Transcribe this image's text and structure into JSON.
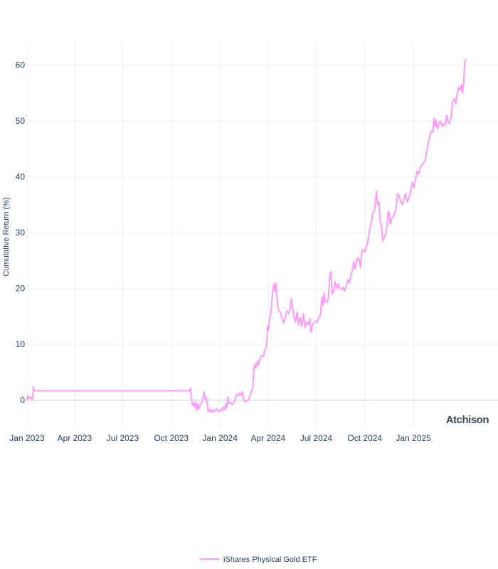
{
  "chart_data": {
    "type": "line",
    "title": "",
    "xlabel": "",
    "ylabel": "Cumulative Return (%)",
    "x_range": [
      "2023-01-01",
      "2025-06-10"
    ],
    "ylim": [
      -5,
      64
    ],
    "y_ticks": [
      0,
      10,
      20,
      30,
      40,
      50,
      60
    ],
    "x_ticks": [
      {
        "date": "2023-01-01",
        "label": "Jan 2023"
      },
      {
        "date": "2023-04-01",
        "label": "Apr 2023"
      },
      {
        "date": "2023-07-01",
        "label": "Jul 2023"
      },
      {
        "date": "2023-10-01",
        "label": "Oct 2023"
      },
      {
        "date": "2024-01-01",
        "label": "Jan 2024"
      },
      {
        "date": "2024-04-01",
        "label": "Apr 2024"
      },
      {
        "date": "2024-07-01",
        "label": "Jul 2024"
      },
      {
        "date": "2024-10-01",
        "label": "Oct 2024"
      },
      {
        "date": "2025-01-01",
        "label": "Jan 2025"
      }
    ],
    "grid": true,
    "legend_position": "bottom-center",
    "watermark": "Atchison",
    "series": [
      {
        "name": "iShares Physical Gold ETF",
        "color": "#ff9cf9",
        "points": [
          [
            "2023-01-01",
            0.0
          ],
          [
            "2023-01-03",
            0.8
          ],
          [
            "2023-01-05",
            0.3
          ],
          [
            "2023-01-08",
            0.6
          ],
          [
            "2023-01-10",
            0.1
          ],
          [
            "2023-01-12",
            0.5
          ],
          [
            "2023-01-13",
            2.4
          ],
          [
            "2023-01-15",
            1.7
          ],
          [
            "2023-02-01",
            1.7
          ],
          [
            "2023-06-01",
            1.7
          ],
          [
            "2023-10-01",
            1.7
          ],
          [
            "2023-11-01",
            1.7
          ],
          [
            "2023-11-05",
            1.7
          ],
          [
            "2023-11-06",
            2.2
          ],
          [
            "2023-11-08",
            0.3
          ],
          [
            "2023-11-10",
            -0.9
          ],
          [
            "2023-11-12",
            -0.4
          ],
          [
            "2023-11-14",
            -1.2
          ],
          [
            "2023-11-16",
            -0.3
          ],
          [
            "2023-11-18",
            -1.8
          ],
          [
            "2023-11-20",
            -0.6
          ],
          [
            "2023-11-22",
            -1.6
          ],
          [
            "2023-11-24",
            -1.0
          ],
          [
            "2023-11-27",
            -0.5
          ],
          [
            "2023-11-30",
            0.3
          ],
          [
            "2023-12-02",
            1.5
          ],
          [
            "2023-12-04",
            0.2
          ],
          [
            "2023-12-06",
            0.5
          ],
          [
            "2023-12-08",
            -0.8
          ],
          [
            "2023-12-10",
            -2.1
          ],
          [
            "2023-12-13",
            -1.6
          ],
          [
            "2023-12-16",
            -2.2
          ],
          [
            "2023-12-19",
            -1.7
          ],
          [
            "2023-12-22",
            -2.0
          ],
          [
            "2023-12-26",
            -1.5
          ],
          [
            "2023-12-29",
            -2.1
          ],
          [
            "2024-01-02",
            -1.6
          ],
          [
            "2024-01-05",
            -1.9
          ],
          [
            "2024-01-08",
            -1.2
          ],
          [
            "2024-01-10",
            -1.7
          ],
          [
            "2024-01-12",
            -0.6
          ],
          [
            "2024-01-14",
            -1.3
          ],
          [
            "2024-01-16",
            0.6
          ],
          [
            "2024-01-18",
            -0.6
          ],
          [
            "2024-01-21",
            -0.4
          ],
          [
            "2024-01-24",
            -0.8
          ],
          [
            "2024-01-27",
            -0.5
          ],
          [
            "2024-01-30",
            0.3
          ],
          [
            "2024-02-02",
            1.1
          ],
          [
            "2024-02-05",
            0.8
          ],
          [
            "2024-02-08",
            1.3
          ],
          [
            "2024-02-10",
            0.9
          ],
          [
            "2024-02-13",
            1.5
          ],
          [
            "2024-02-15",
            0.0
          ],
          [
            "2024-02-18",
            -0.3
          ],
          [
            "2024-02-21",
            -0.1
          ],
          [
            "2024-02-24",
            0.0
          ],
          [
            "2024-02-27",
            0.8
          ],
          [
            "2024-03-01",
            1.8
          ],
          [
            "2024-03-03",
            2.2
          ],
          [
            "2024-03-05",
            5.5
          ],
          [
            "2024-03-07",
            6.5
          ],
          [
            "2024-03-09",
            5.8
          ],
          [
            "2024-03-12",
            7.0
          ],
          [
            "2024-03-14",
            6.3
          ],
          [
            "2024-03-17",
            7.5
          ],
          [
            "2024-03-20",
            8.0
          ],
          [
            "2024-03-23",
            7.8
          ],
          [
            "2024-03-26",
            9.0
          ],
          [
            "2024-03-29",
            9.5
          ],
          [
            "2024-03-31",
            13.2
          ],
          [
            "2024-04-02",
            12.5
          ],
          [
            "2024-04-04",
            14.8
          ],
          [
            "2024-04-06",
            15.5
          ],
          [
            "2024-04-08",
            17.5
          ],
          [
            "2024-04-10",
            19.5
          ],
          [
            "2024-04-12",
            20.8
          ],
          [
            "2024-04-14",
            19.5
          ],
          [
            "2024-04-16",
            21.0
          ],
          [
            "2024-04-18",
            18.5
          ],
          [
            "2024-04-20",
            16.2
          ],
          [
            "2024-04-24",
            15.8
          ],
          [
            "2024-04-28",
            14.5
          ],
          [
            "2024-05-01",
            13.8
          ],
          [
            "2024-05-04",
            15.2
          ],
          [
            "2024-05-07",
            16.0
          ],
          [
            "2024-05-10",
            15.5
          ],
          [
            "2024-05-13",
            16.3
          ],
          [
            "2024-05-15",
            18.2
          ],
          [
            "2024-05-17",
            17.0
          ],
          [
            "2024-05-20",
            15.0
          ],
          [
            "2024-05-23",
            14.0
          ],
          [
            "2024-05-26",
            15.8
          ],
          [
            "2024-05-29",
            13.5
          ],
          [
            "2024-06-01",
            14.8
          ],
          [
            "2024-06-04",
            13.2
          ],
          [
            "2024-06-07",
            15.5
          ],
          [
            "2024-06-10",
            13.0
          ],
          [
            "2024-06-13",
            14.0
          ],
          [
            "2024-06-16",
            13.5
          ],
          [
            "2024-06-19",
            14.6
          ],
          [
            "2024-06-21",
            12.2
          ],
          [
            "2024-06-24",
            13.5
          ],
          [
            "2024-06-27",
            13.8
          ],
          [
            "2024-06-30",
            14.2
          ],
          [
            "2024-07-03",
            14.0
          ],
          [
            "2024-07-06",
            14.8
          ],
          [
            "2024-07-09",
            15.2
          ],
          [
            "2024-07-12",
            18.5
          ],
          [
            "2024-07-14",
            17.0
          ],
          [
            "2024-07-16",
            19.2
          ],
          [
            "2024-07-18",
            17.8
          ],
          [
            "2024-07-21",
            17.5
          ],
          [
            "2024-07-24",
            18.2
          ],
          [
            "2024-07-27",
            22.5
          ],
          [
            "2024-07-29",
            23.0
          ],
          [
            "2024-07-31",
            19.0
          ],
          [
            "2024-08-03",
            19.5
          ],
          [
            "2024-08-06",
            21.2
          ],
          [
            "2024-08-09",
            20.0
          ],
          [
            "2024-08-12",
            20.8
          ],
          [
            "2024-08-15",
            20.0
          ],
          [
            "2024-08-18",
            19.8
          ],
          [
            "2024-08-21",
            20.2
          ],
          [
            "2024-08-24",
            19.6
          ],
          [
            "2024-08-27",
            20.5
          ],
          [
            "2024-08-30",
            21.5
          ],
          [
            "2024-09-02",
            21.0
          ],
          [
            "2024-09-05",
            22.5
          ],
          [
            "2024-09-08",
            23.5
          ],
          [
            "2024-09-10",
            24.8
          ],
          [
            "2024-09-12",
            23.5
          ],
          [
            "2024-09-14",
            24.0
          ],
          [
            "2024-09-17",
            25.5
          ],
          [
            "2024-09-20",
            25.2
          ],
          [
            "2024-09-23",
            23.8
          ],
          [
            "2024-09-25",
            26.5
          ],
          [
            "2024-09-28",
            27.0
          ],
          [
            "2024-10-01",
            26.5
          ],
          [
            "2024-10-04",
            27.5
          ],
          [
            "2024-10-07",
            28.5
          ],
          [
            "2024-10-10",
            30.5
          ],
          [
            "2024-10-13",
            31.5
          ],
          [
            "2024-10-16",
            33.5
          ],
          [
            "2024-10-19",
            33.8
          ],
          [
            "2024-10-21",
            35.5
          ],
          [
            "2024-10-23",
            37.5
          ],
          [
            "2024-10-25",
            35.0
          ],
          [
            "2024-10-28",
            35.5
          ],
          [
            "2024-10-30",
            32.0
          ],
          [
            "2024-11-02",
            31.0
          ],
          [
            "2024-11-04",
            28.5
          ],
          [
            "2024-11-06",
            29.0
          ],
          [
            "2024-11-09",
            29.5
          ],
          [
            "2024-11-12",
            31.0
          ],
          [
            "2024-11-14",
            33.5
          ],
          [
            "2024-11-16",
            33.8
          ],
          [
            "2024-11-18",
            31.5
          ],
          [
            "2024-11-21",
            32.5
          ],
          [
            "2024-11-24",
            33.0
          ],
          [
            "2024-11-27",
            33.5
          ],
          [
            "2024-11-30",
            35.0
          ],
          [
            "2024-12-02",
            37.0
          ],
          [
            "2024-12-05",
            36.5
          ],
          [
            "2024-12-08",
            35.5
          ],
          [
            "2024-12-11",
            35.0
          ],
          [
            "2024-12-14",
            36.0
          ],
          [
            "2024-12-17",
            37.0
          ],
          [
            "2024-12-20",
            35.5
          ],
          [
            "2024-12-23",
            36.0
          ],
          [
            "2024-12-27",
            37.5
          ],
          [
            "2024-12-30",
            39.0
          ],
          [
            "2025-01-02",
            38.0
          ],
          [
            "2025-01-05",
            39.5
          ],
          [
            "2025-01-08",
            41.0
          ],
          [
            "2025-01-11",
            40.5
          ],
          [
            "2025-01-14",
            41.8
          ],
          [
            "2025-01-17",
            42.0
          ],
          [
            "2025-01-20",
            42.5
          ],
          [
            "2025-01-23",
            42.8
          ],
          [
            "2025-01-26",
            44.5
          ],
          [
            "2025-01-29",
            46.0
          ],
          [
            "2025-02-01",
            47.5
          ],
          [
            "2025-02-04",
            48.2
          ],
          [
            "2025-02-07",
            48.0
          ],
          [
            "2025-02-09",
            50.5
          ],
          [
            "2025-02-11",
            49.0
          ],
          [
            "2025-02-13",
            50.2
          ],
          [
            "2025-02-15",
            48.5
          ],
          [
            "2025-02-18",
            49.5
          ],
          [
            "2025-02-21",
            50.0
          ],
          [
            "2025-02-24",
            49.0
          ],
          [
            "2025-02-27",
            49.5
          ],
          [
            "2025-03-02",
            49.2
          ],
          [
            "2025-03-05",
            51.0
          ],
          [
            "2025-03-07",
            50.0
          ],
          [
            "2025-03-10",
            49.5
          ],
          [
            "2025-03-13",
            50.5
          ],
          [
            "2025-03-16",
            53.5
          ],
          [
            "2025-03-19",
            54.0
          ],
          [
            "2025-03-22",
            53.0
          ],
          [
            "2025-03-25",
            55.0
          ],
          [
            "2025-03-28",
            56.0
          ],
          [
            "2025-03-31",
            55.5
          ],
          [
            "2025-04-02",
            56.5
          ],
          [
            "2025-04-04",
            55.0
          ],
          [
            "2025-04-06",
            56.5
          ],
          [
            "2025-04-08",
            60.5
          ],
          [
            "2025-04-10",
            61.0
          ]
        ]
      }
    ]
  }
}
